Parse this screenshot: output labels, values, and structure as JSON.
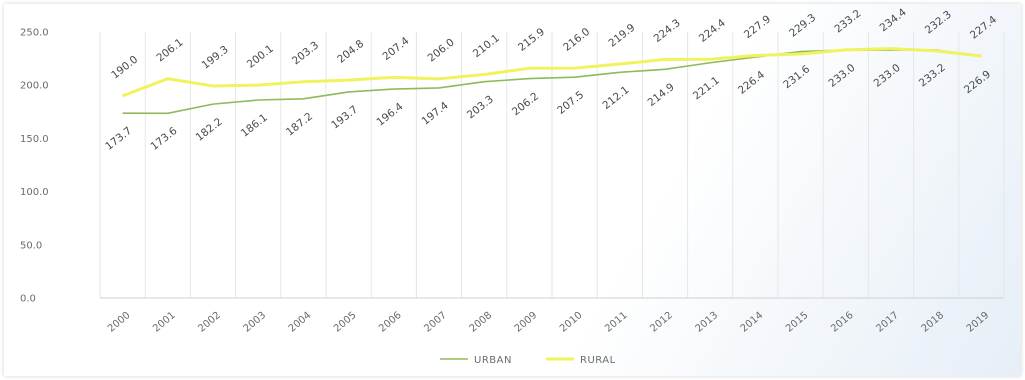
{
  "chart_data": {
    "type": "line",
    "title": "",
    "xlabel": "",
    "ylabel": "",
    "ylim": [
      0,
      250
    ],
    "y_ticks": [
      "0.0",
      "50.0",
      "100.0",
      "150.0",
      "200.0",
      "250.0"
    ],
    "grid": "vertical",
    "legend_position": "bottom",
    "x": [
      "2000",
      "2001",
      "2002",
      "2003",
      "2004",
      "2005",
      "2006",
      "2007",
      "2008",
      "2009",
      "2010",
      "2011",
      "2012",
      "2013",
      "2014",
      "2015",
      "2016",
      "2017",
      "2018",
      "2019"
    ],
    "series": [
      {
        "name": "URBAN",
        "color": "#8dbb5a",
        "values": [
          173.7,
          173.6,
          182.2,
          186.1,
          187.2,
          193.7,
          196.4,
          197.4,
          203.3,
          206.2,
          207.5,
          212.1,
          214.9,
          221.1,
          226.4,
          231.6,
          233.0,
          233.0,
          233.2,
          226.9
        ]
      },
      {
        "name": "RURAL",
        "color": "#f0f25e",
        "values": [
          190.0,
          206.1,
          199.3,
          200.1,
          203.3,
          204.8,
          207.4,
          206.0,
          210.1,
          215.9,
          216.0,
          219.9,
          224.3,
          224.4,
          227.9,
          229.3,
          233.2,
          234.4,
          232.3,
          227.4
        ]
      }
    ]
  }
}
